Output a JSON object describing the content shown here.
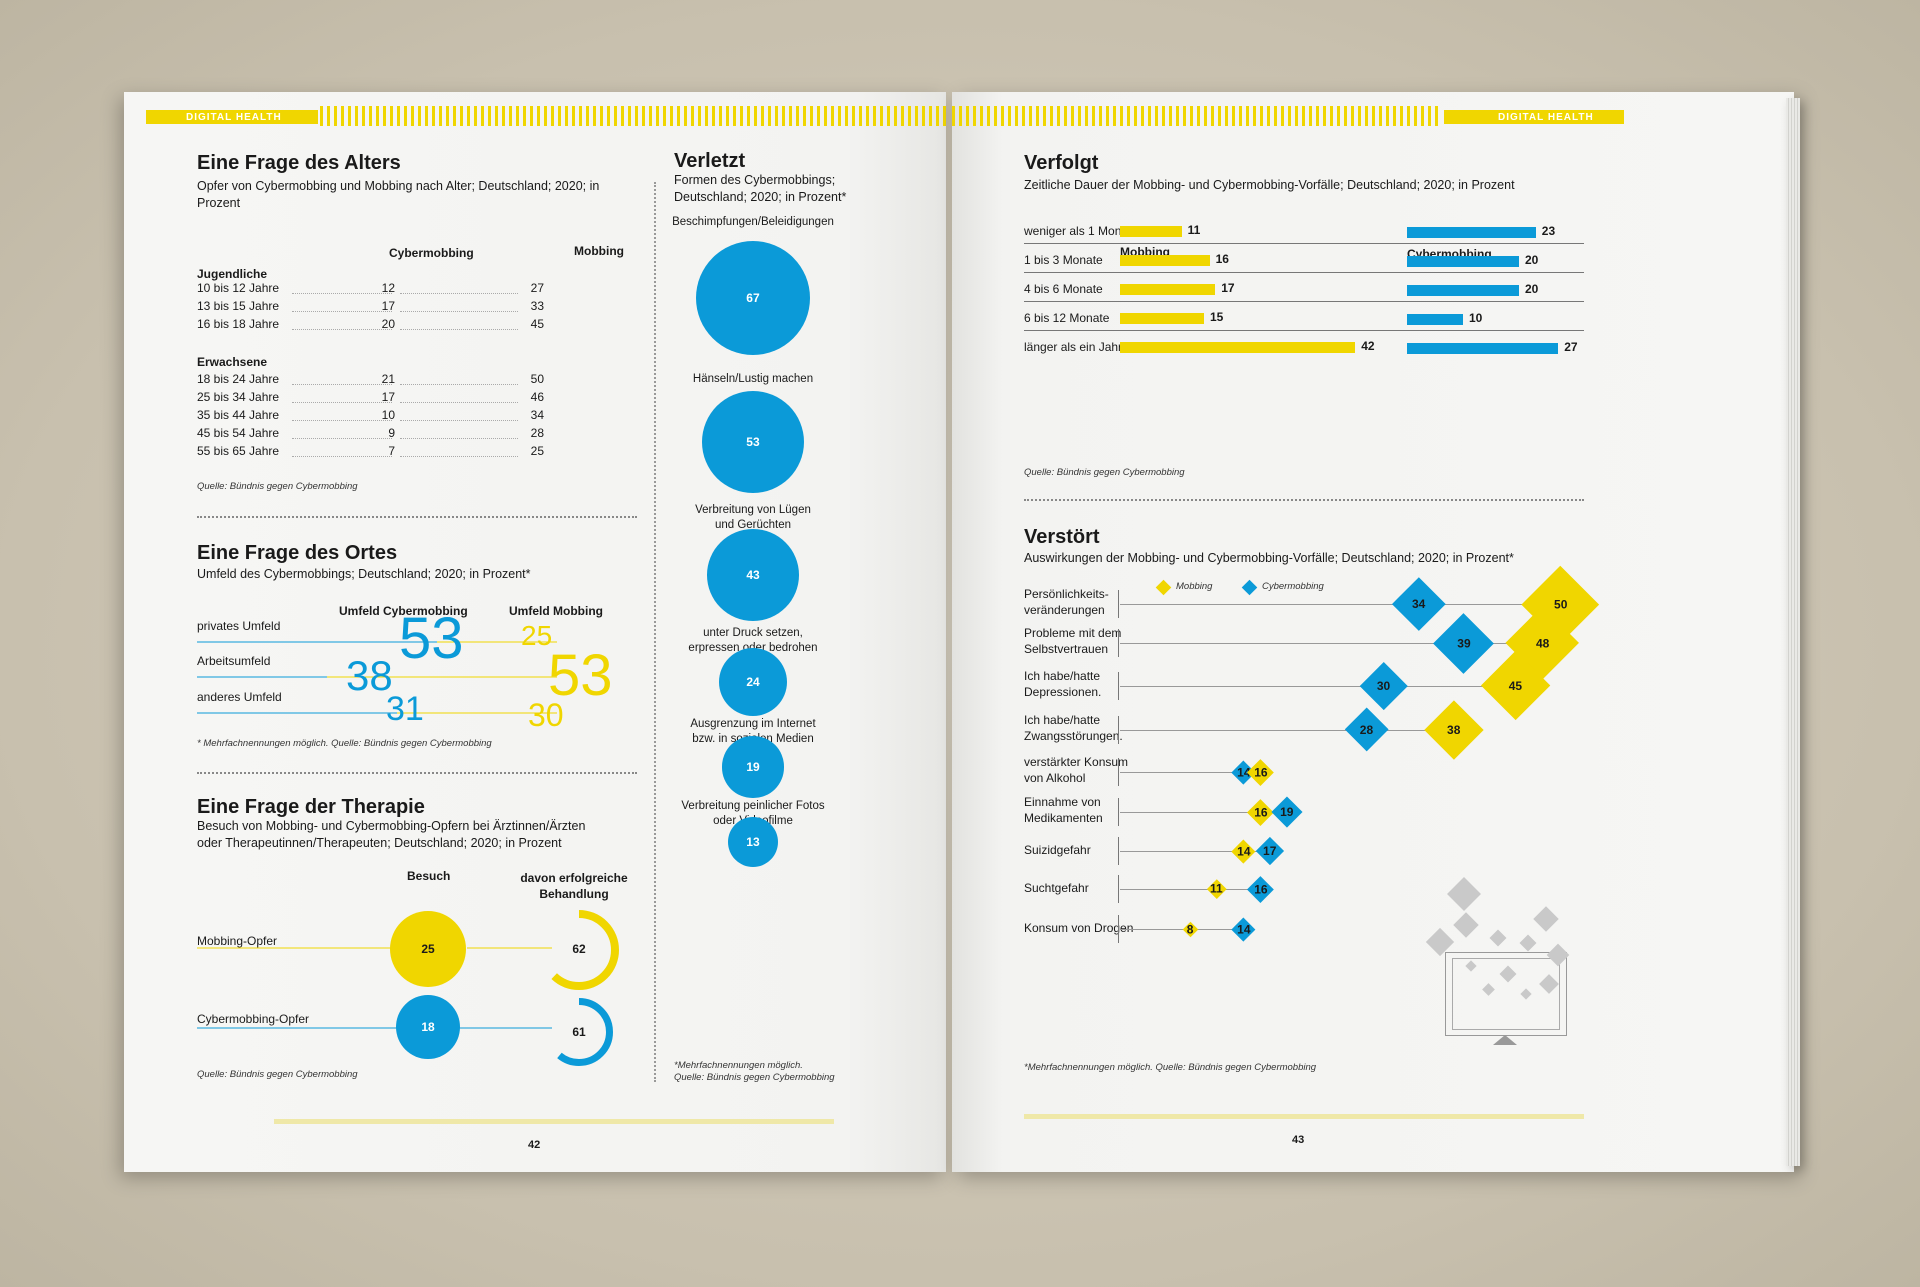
{
  "header": {
    "left_tag": "DIGITAL HEALTH",
    "right_tag": "DIGITAL HEALTH"
  },
  "alter": {
    "title": "Eine Frage des Alters",
    "subtitle": "Opfer von Cybermobbing und Mobbing nach Alter; Deutschland; 2020; in Prozent",
    "col_cyber": "Cybermobbing",
    "col_mobbing": "Mobbing",
    "group1": "Jugendliche",
    "rows1": [
      {
        "label": "10 bis 12 Jahre",
        "cyber": "12",
        "mobbing": "27"
      },
      {
        "label": "13 bis 15 Jahre",
        "cyber": "17",
        "mobbing": "33"
      },
      {
        "label": "16 bis 18 Jahre",
        "cyber": "20",
        "mobbing": "45"
      }
    ],
    "group2": "Erwachsene",
    "rows2": [
      {
        "label": "18 bis 24 Jahre",
        "cyber": "21",
        "mobbing": "50"
      },
      {
        "label": "25 bis 34 Jahre",
        "cyber": "17",
        "mobbing": "46"
      },
      {
        "label": "35 bis 44 Jahre",
        "cyber": "10",
        "mobbing": "34"
      },
      {
        "label": "45 bis 54 Jahre",
        "cyber": "9",
        "mobbing": "28"
      },
      {
        "label": "55 bis 65 Jahre",
        "cyber": "7",
        "mobbing": "25"
      }
    ],
    "source": "Quelle: Bündnis gegen Cybermobbing"
  },
  "ortes": {
    "title": "Eine Frage des Ortes",
    "subtitle": "Umfeld des Cybermobbings; Deutschland; 2020; in Prozent*",
    "col_cyber": "Umfeld Cybermobbing",
    "col_mobbing": "Umfeld Mobbing",
    "rows": [
      {
        "label": "privates Umfeld",
        "cyber": "53",
        "mobbing": "25"
      },
      {
        "label": "Arbeitsumfeld",
        "cyber": "38",
        "mobbing": "53"
      },
      {
        "label": "anderes Umfeld",
        "cyber": "31",
        "mobbing": "30"
      }
    ],
    "source": "* Mehrfachnennungen möglich. Quelle: Bündnis gegen Cybermobbing"
  },
  "therapie": {
    "title": "Eine Frage der Therapie",
    "subtitle1": "Besuch von Mobbing- und Cybermobbing-Opfern bei Ärztinnen/Ärzten",
    "subtitle2": "oder Therapeutinnen/Therapeuten; Deutschland; 2020; in Prozent",
    "col_visit": "Besuch",
    "col_success1": "davon erfolgreiche",
    "col_success2": "Behandlung",
    "rows": [
      {
        "label": "Mobbing-Opfer",
        "visit": "25",
        "success": "62",
        "success_frac": 0.62
      },
      {
        "label": "Cybermobbing-Opfer",
        "visit": "18",
        "success": "61",
        "success_frac": 0.61
      }
    ],
    "source": "Quelle: Bündnis gegen Cybermobbing"
  },
  "verletzt": {
    "title": "Verletzt",
    "subtitle1": "Formen des Cybermobbings;",
    "subtitle2": "Deutschland; 2020; in Prozent*",
    "items": [
      {
        "label1": "Beschimpfungen/Beleidigungen",
        "label2": "",
        "value": "67"
      },
      {
        "label1": "Hänseln/Lustig machen",
        "label2": "",
        "value": "53"
      },
      {
        "label1": "Verbreitung von Lügen",
        "label2": "und Gerüchten",
        "value": "43"
      },
      {
        "label1": "unter Druck setzen,",
        "label2": "erpressen oder bedrohen",
        "value": "24"
      },
      {
        "label1": "Ausgrenzung im Internet",
        "label2": "bzw. in sozialen Medien",
        "value": "19"
      },
      {
        "label1": "Verbreitung peinlicher Fotos",
        "label2": "oder Videofilme",
        "value": "13"
      }
    ],
    "source1": "*Mehrfachnennungen möglich.",
    "source2": "Quelle: Bündnis gegen Cybermobbing"
  },
  "verfolgt": {
    "title": "Verfolgt",
    "subtitle": "Zeitliche Dauer der Mobbing- und Cybermobbing-Vorfälle; Deutschland; 2020; in Prozent",
    "col_mobbing": "Mobbing",
    "col_cyber": "Cybermobbing",
    "rows": [
      {
        "label": "weniger als 1 Monat",
        "mobbing": 11,
        "cyber": 23
      },
      {
        "label": "1 bis 3 Monate",
        "mobbing": 16,
        "cyber": 20
      },
      {
        "label": "4 bis 6 Monate",
        "mobbing": 17,
        "cyber": 20
      },
      {
        "label": "6 bis 12 Monate",
        "mobbing": 15,
        "cyber": 10
      },
      {
        "label": "länger als ein Jahr",
        "mobbing": 42,
        "cyber": 27
      }
    ],
    "source": "Quelle: Bündnis gegen Cybermobbing"
  },
  "verstoert": {
    "title": "Verstört",
    "subtitle": "Auswirkungen der Mobbing- und Cybermobbing-Vorfälle; Deutschland; 2020; in Prozent*",
    "legend_mobbing": "Mobbing",
    "legend_cyber": "Cybermobbing",
    "rows": [
      {
        "label1": "Persönlichkeits-",
        "label2": "veränderungen",
        "mobbing": 50,
        "cyber": 34
      },
      {
        "label1": "Probleme mit dem",
        "label2": "Selbstvertrauen",
        "mobbing": 48,
        "cyber": 39
      },
      {
        "label1": "Ich habe/hatte",
        "label2": "Depressionen.",
        "mobbing": 45,
        "cyber": 30
      },
      {
        "label1": "Ich habe/hatte",
        "label2": "Zwangsstörungen.",
        "mobbing": 38,
        "cyber": 28
      },
      {
        "label1": "verstärkter Konsum",
        "label2": "von Alkohol",
        "mobbing": 16,
        "cyber": 14
      },
      {
        "label1": "Einnahme von",
        "label2": "Medikamenten",
        "mobbing": 16,
        "cyber": 19
      },
      {
        "label1": "Suizidgefahr",
        "label2": "",
        "mobbing": 14,
        "cyber": 17
      },
      {
        "label1": "Suchtgefahr",
        "label2": "",
        "mobbing": 11,
        "cyber": 16
      },
      {
        "label1": "Konsum von Drogen",
        "label2": "",
        "mobbing": 8,
        "cyber": 14
      }
    ],
    "source": "*Mehrfachnennungen möglich. Quelle: Bündnis gegen Cybermobbing"
  },
  "page_left": "42",
  "page_right": "43",
  "colors": {
    "yellow": "#f0d600",
    "blue": "#0b9ad8"
  }
}
